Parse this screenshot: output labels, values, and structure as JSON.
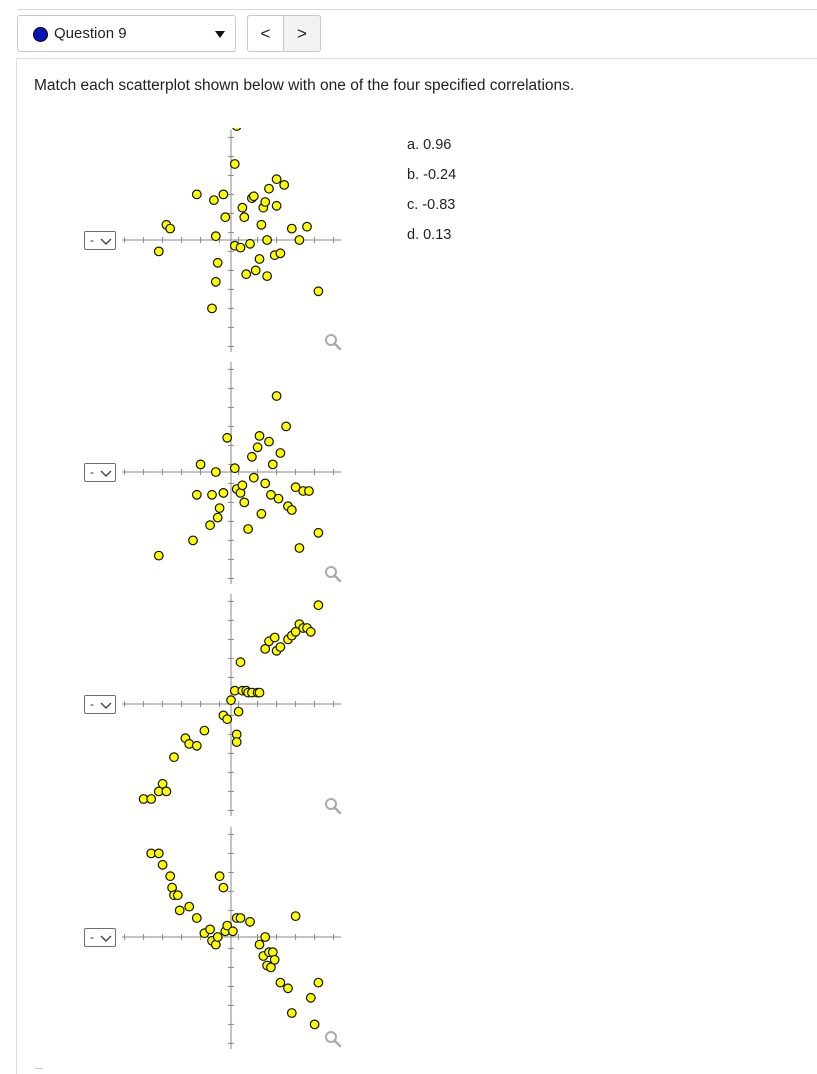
{
  "header": {
    "question_label": "Question 9",
    "question_dot_color": "#0a14b4",
    "prev_label": "<",
    "next_label": ">"
  },
  "prompt": "Match each scatterplot shown below with one of the four specified correlations.",
  "options": [
    "a. 0.96",
    "b. -0.24",
    "c. -0.83",
    "d. 0.13"
  ],
  "dropdown_value": "-",
  "point_color": "#ffff00",
  "chart_data": [
    {
      "type": "scatter",
      "x": [
        -1.9,
        -1.7,
        -1.6,
        -0.9,
        -0.5,
        -0.4,
        -0.45,
        -0.4,
        -0.35,
        -0.2,
        -0.15,
        0.1,
        0.15,
        0.1,
        0.25,
        0.3,
        0.35,
        0.4,
        0.5,
        0.55,
        0.6,
        0.65,
        0.75,
        0.8,
        0.85,
        0.9,
        0.95,
        0.95,
        1.0,
        1.15,
        1.2,
        1.2,
        1.3,
        1.4,
        1.6,
        1.8,
        2.0,
        2.3
      ],
      "y": [
        -0.3,
        0.4,
        0.3,
        1.2,
        -1.8,
        0.1,
        1.05,
        -1.1,
        -0.6,
        1.2,
        0.6,
        2.0,
        3.0,
        -0.15,
        -0.2,
        0.85,
        0.6,
        -0.9,
        -0.1,
        1.1,
        1.15,
        -0.8,
        -0.5,
        0.4,
        0.85,
        1.0,
        -0.95,
        0.0,
        1.35,
        -0.4,
        1.6,
        0.9,
        -0.35,
        1.45,
        0.3,
        0.0,
        0.35,
        -1.35
      ]
    },
    {
      "type": "scatter",
      "x": [
        -1.9,
        -1.0,
        -0.9,
        -0.8,
        -0.55,
        -0.5,
        -0.4,
        -0.35,
        -0.3,
        -0.2,
        -0.1,
        0.1,
        0.15,
        0.25,
        0.3,
        0.35,
        0.45,
        0.55,
        0.6,
        0.7,
        0.75,
        0.8,
        0.9,
        1.0,
        1.05,
        1.1,
        1.2,
        1.25,
        1.3,
        1.45,
        1.5,
        1.6,
        1.7,
        1.8,
        1.9,
        2.05,
        2.3
      ],
      "y": [
        -2.2,
        -1.8,
        -0.6,
        0.2,
        -1.4,
        -0.6,
        0.0,
        -1.2,
        -0.95,
        -0.55,
        0.9,
        0.1,
        -0.45,
        -0.55,
        -0.35,
        -0.8,
        -1.5,
        0.4,
        -0.15,
        0.65,
        0.95,
        -1.1,
        -0.3,
        0.8,
        -0.6,
        0.2,
        2.0,
        -0.7,
        0.5,
        1.2,
        -0.9,
        -1.0,
        -0.4,
        -2.0,
        -0.5,
        -0.5,
        -1.6
      ]
    },
    {
      "type": "scatter",
      "x": [
        -2.3,
        -2.1,
        -1.9,
        -1.8,
        -1.7,
        -1.5,
        -1.2,
        -1.1,
        -0.9,
        -0.7,
        -0.2,
        -0.1,
        0.0,
        0.1,
        0.15,
        0.15,
        0.2,
        0.25,
        0.3,
        0.4,
        0.45,
        0.55,
        0.7,
        0.75,
        0.9,
        1.0,
        1.15,
        1.2,
        1.3,
        1.5,
        1.6,
        1.7,
        1.8,
        1.9,
        2.0,
        2.1,
        2.3
      ],
      "y": [
        -2.5,
        -2.5,
        -2.3,
        -2.1,
        -2.3,
        -1.4,
        -0.9,
        -1.05,
        -1.1,
        -0.7,
        -0.3,
        -0.4,
        0.1,
        0.35,
        -0.8,
        -1.0,
        -0.2,
        1.1,
        0.35,
        0.35,
        0.3,
        0.3,
        0.3,
        0.3,
        1.45,
        1.65,
        1.75,
        1.4,
        1.5,
        1.7,
        1.8,
        1.9,
        2.1,
        2.0,
        2.0,
        1.9,
        2.6
      ]
    },
    {
      "type": "scatter",
      "x": [
        -2.1,
        -1.9,
        -1.8,
        -1.6,
        -1.55,
        -1.5,
        -1.4,
        -1.35,
        -1.1,
        -0.9,
        -0.7,
        -0.55,
        -0.5,
        -0.4,
        -0.35,
        -0.3,
        -0.2,
        -0.15,
        -0.1,
        0.05,
        0.15,
        0.25,
        0.5,
        0.75,
        0.85,
        0.9,
        0.95,
        1.0,
        1.05,
        1.1,
        1.15,
        1.3,
        1.5,
        1.6,
        1.7,
        2.1,
        2.2,
        2.3
      ],
      "y": [
        2.2,
        2.2,
        1.9,
        1.6,
        1.3,
        1.1,
        1.1,
        0.7,
        0.8,
        0.5,
        0.1,
        0.2,
        -0.1,
        -0.2,
        0.0,
        1.6,
        1.3,
        0.15,
        0.3,
        0.15,
        0.5,
        0.5,
        0.4,
        -0.2,
        -0.5,
        0.0,
        -0.75,
        -0.4,
        -0.8,
        -0.4,
        -0.6,
        -1.2,
        -1.35,
        -2.0,
        0.55,
        -1.6,
        -2.3,
        -1.2
      ]
    }
  ]
}
